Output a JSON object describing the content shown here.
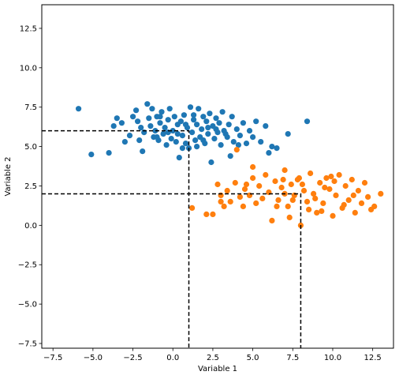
{
  "chart_data": {
    "type": "scatter",
    "xlabel": "Variable 1",
    "ylabel": "Variable 2",
    "xlim": [
      -8.2,
      13.8
    ],
    "ylim": [
      -7.8,
      14.0
    ],
    "xticks": [
      -7.5,
      -5.0,
      -2.5,
      0.0,
      2.5,
      5.0,
      7.5,
      10.0,
      12.5
    ],
    "xtick_labels": [
      "−7.5",
      "−5.0",
      "−2.5",
      "0.0",
      "2.5",
      "5.0",
      "7.5",
      "10.0",
      "12.5"
    ],
    "yticks": [
      -7.5,
      -5.0,
      -2.5,
      0.0,
      2.5,
      5.0,
      7.5,
      10.0,
      12.5
    ],
    "ytick_labels": [
      "−7.5",
      "−5.0",
      "−2.5",
      "0.0",
      "2.5",
      "5.0",
      "7.5",
      "10.0",
      "12.5"
    ],
    "grid": false,
    "legend": "none",
    "series": [
      {
        "color": "#1f77b4",
        "points": [
          [
            -5.9,
            7.4
          ],
          [
            -5.1,
            4.5
          ],
          [
            -4.0,
            4.6
          ],
          [
            -3.7,
            6.3
          ],
          [
            -3.5,
            6.8
          ],
          [
            -3.2,
            6.5
          ],
          [
            -3.0,
            5.3
          ],
          [
            -2.7,
            5.7
          ],
          [
            -2.5,
            6.9
          ],
          [
            -2.3,
            7.3
          ],
          [
            -2.2,
            6.6
          ],
          [
            -2.0,
            6.2
          ],
          [
            -1.9,
            4.7
          ],
          [
            -1.8,
            5.9
          ],
          [
            -1.6,
            7.7
          ],
          [
            -1.5,
            6.8
          ],
          [
            -1.4,
            6.3
          ],
          [
            -1.3,
            7.4
          ],
          [
            -1.2,
            5.6
          ],
          [
            -1.1,
            6.0
          ],
          [
            -1.0,
            6.9
          ],
          [
            -0.9,
            5.4
          ],
          [
            -0.8,
            6.5
          ],
          [
            -0.7,
            7.2
          ],
          [
            -0.6,
            5.8
          ],
          [
            -0.5,
            6.2
          ],
          [
            -0.4,
            5.1
          ],
          [
            -0.3,
            6.7
          ],
          [
            -0.2,
            7.4
          ],
          [
            -0.1,
            5.5
          ],
          [
            0.0,
            6.0
          ],
          [
            0.1,
            6.9
          ],
          [
            0.2,
            5.3
          ],
          [
            0.3,
            6.4
          ],
          [
            0.4,
            4.3
          ],
          [
            0.5,
            6.6
          ],
          [
            0.6,
            5.7
          ],
          [
            0.7,
            7.0
          ],
          [
            0.8,
            5.2
          ],
          [
            0.9,
            6.2
          ],
          [
            1.0,
            4.9
          ],
          [
            1.1,
            7.5
          ],
          [
            1.2,
            5.9
          ],
          [
            1.3,
            6.7
          ],
          [
            1.4,
            5.4
          ],
          [
            1.5,
            6.4
          ],
          [
            1.6,
            7.4
          ],
          [
            1.7,
            5.6
          ],
          [
            1.8,
            6.1
          ],
          [
            1.9,
            6.9
          ],
          [
            2.0,
            5.2
          ],
          [
            2.1,
            6.6
          ],
          [
            2.2,
            5.8
          ],
          [
            2.3,
            7.1
          ],
          [
            2.4,
            4.0
          ],
          [
            2.5,
            6.3
          ],
          [
            2.6,
            5.5
          ],
          [
            2.7,
            6.8
          ],
          [
            2.8,
            5.9
          ],
          [
            2.9,
            6.5
          ],
          [
            3.0,
            5.1
          ],
          [
            3.1,
            7.2
          ],
          [
            3.2,
            6.0
          ],
          [
            3.4,
            5.6
          ],
          [
            3.5,
            6.4
          ],
          [
            3.6,
            4.4
          ],
          [
            3.7,
            6.9
          ],
          [
            3.8,
            5.3
          ],
          [
            4.0,
            6.1
          ],
          [
            4.2,
            5.7
          ],
          [
            4.4,
            6.5
          ],
          [
            4.6,
            5.2
          ],
          [
            4.8,
            6.0
          ],
          [
            5.0,
            5.6
          ],
          [
            5.2,
            6.6
          ],
          [
            5.5,
            5.3
          ],
          [
            5.8,
            6.3
          ],
          [
            6.0,
            4.6
          ],
          [
            6.2,
            5.0
          ],
          [
            6.5,
            4.9
          ],
          [
            7.2,
            5.8
          ],
          [
            8.4,
            6.6
          ],
          [
            -1.0,
            5.6
          ],
          [
            0.3,
            5.8
          ],
          [
            1.5,
            5.0
          ],
          [
            2.2,
            6.2
          ],
          [
            0.8,
            6.4
          ],
          [
            -0.3,
            5.9
          ],
          [
            1.9,
            5.4
          ],
          [
            3.3,
            5.8
          ],
          [
            -2.1,
            5.4
          ],
          [
            0.6,
            4.9
          ],
          [
            2.7,
            6.1
          ],
          [
            -0.8,
            6.9
          ],
          [
            4.1,
            5.1
          ],
          [
            1.3,
            7.0
          ]
        ]
      },
      {
        "color": "#ff7f0e",
        "points": [
          [
            1.2,
            1.1
          ],
          [
            2.1,
            0.7
          ],
          [
            2.5,
            0.7
          ],
          [
            2.8,
            2.6
          ],
          [
            3.0,
            1.9
          ],
          [
            3.2,
            1.2
          ],
          [
            3.4,
            2.2
          ],
          [
            3.6,
            1.5
          ],
          [
            3.9,
            2.7
          ],
          [
            4.0,
            4.8
          ],
          [
            4.2,
            1.8
          ],
          [
            4.4,
            1.2
          ],
          [
            4.6,
            2.6
          ],
          [
            4.8,
            1.9
          ],
          [
            5.0,
            3.0
          ],
          [
            5.2,
            1.4
          ],
          [
            5.4,
            2.5
          ],
          [
            5.6,
            1.7
          ],
          [
            5.8,
            3.2
          ],
          [
            6.0,
            2.1
          ],
          [
            6.2,
            0.3
          ],
          [
            6.4,
            2.8
          ],
          [
            6.6,
            1.6
          ],
          [
            6.8,
            2.4
          ],
          [
            7.0,
            3.5
          ],
          [
            7.2,
            1.2
          ],
          [
            7.4,
            2.6
          ],
          [
            7.6,
            1.9
          ],
          [
            7.8,
            2.9
          ],
          [
            8.0,
            0.0
          ],
          [
            8.2,
            2.2
          ],
          [
            8.4,
            1.5
          ],
          [
            8.6,
            3.3
          ],
          [
            8.8,
            2.0
          ],
          [
            9.0,
            0.8
          ],
          [
            9.2,
            2.7
          ],
          [
            9.4,
            1.4
          ],
          [
            9.6,
            3.0
          ],
          [
            9.8,
            2.3
          ],
          [
            10.0,
            0.6
          ],
          [
            10.2,
            1.9
          ],
          [
            10.4,
            3.2
          ],
          [
            10.6,
            1.1
          ],
          [
            10.8,
            2.5
          ],
          [
            11.0,
            1.6
          ],
          [
            11.2,
            2.9
          ],
          [
            11.4,
            0.8
          ],
          [
            11.6,
            2.2
          ],
          [
            11.8,
            1.4
          ],
          [
            12.0,
            2.7
          ],
          [
            12.2,
            1.8
          ],
          [
            12.6,
            1.2
          ],
          [
            13.0,
            2.0
          ],
          [
            5.0,
            3.7
          ],
          [
            7.0,
            2.0
          ],
          [
            7.5,
            1.6
          ],
          [
            8.1,
            2.6
          ],
          [
            8.9,
            1.7
          ],
          [
            9.5,
            2.4
          ],
          [
            10.1,
            2.8
          ],
          [
            6.5,
            1.2
          ],
          [
            7.9,
            3.0
          ],
          [
            9.3,
            0.9
          ],
          [
            10.7,
            1.3
          ],
          [
            4.5,
            2.3
          ],
          [
            3.0,
            1.5
          ],
          [
            6.9,
            2.9
          ],
          [
            8.5,
            1.0
          ],
          [
            11.3,
            1.9
          ],
          [
            12.4,
            1.0
          ],
          [
            9.9,
            3.1
          ],
          [
            7.3,
            0.5
          ]
        ]
      }
    ],
    "reference_lines": [
      {
        "x": 1.0,
        "y": 6.0,
        "color": "#000000",
        "style": "dashed"
      },
      {
        "x": 8.0,
        "y": 2.0,
        "color": "#000000",
        "style": "dashed"
      }
    ]
  }
}
